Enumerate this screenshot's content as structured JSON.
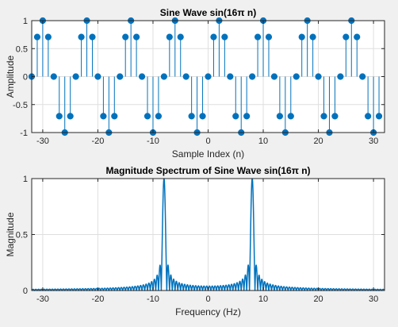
{
  "chart_data": [
    {
      "type": "stem",
      "title": "Sine Wave sin(16π n)",
      "xlabel": "Sample Index (n)",
      "ylabel": "Amplitude",
      "xlim": [
        -32,
        32
      ],
      "ylim": [
        -1,
        1
      ],
      "xticks": [
        -30,
        -20,
        -10,
        0,
        10,
        20,
        30
      ],
      "xtick_labels": [
        "-30",
        "-20",
        "-10",
        "0",
        "10",
        "20",
        "30"
      ],
      "yticks": [
        -1,
        -0.5,
        0,
        0.5,
        1
      ],
      "ytick_labels": [
        "-1",
        "-0.5",
        "0",
        "0.5",
        "1"
      ],
      "grid": true,
      "color": "#0072bd",
      "x": [
        -32,
        -31,
        -30,
        -29,
        -28,
        -27,
        -26,
        -25,
        -24,
        -23,
        -22,
        -21,
        -20,
        -19,
        -18,
        -17,
        -16,
        -15,
        -14,
        -13,
        -12,
        -11,
        -10,
        -9,
        -8,
        -7,
        -6,
        -5,
        -4,
        -3,
        -2,
        -1,
        0,
        1,
        2,
        3,
        4,
        5,
        6,
        7,
        8,
        9,
        10,
        11,
        12,
        13,
        14,
        15,
        16,
        17,
        18,
        19,
        20,
        21,
        22,
        23,
        24,
        25,
        26,
        27,
        28,
        29,
        30,
        31
      ],
      "y": [
        0,
        0.707,
        1,
        0.707,
        0,
        -0.707,
        -1,
        -0.707,
        0,
        0.707,
        1,
        0.707,
        0,
        -0.707,
        -1,
        -0.707,
        0,
        0.707,
        1,
        0.707,
        0,
        -0.707,
        -1,
        -0.707,
        0,
        0.707,
        1,
        0.707,
        0,
        -0.707,
        -1,
        -0.707,
        0,
        0.707,
        1,
        0.707,
        0,
        -0.707,
        -1,
        -0.707,
        0,
        0.707,
        1,
        0.707,
        0,
        -0.707,
        -1,
        -0.707,
        0,
        0.707,
        1,
        0.707,
        0,
        -0.707,
        -1,
        -0.707,
        0,
        0.707,
        1,
        0.707,
        0,
        -0.707,
        -1,
        -0.707
      ]
    },
    {
      "type": "line",
      "title": "Magnitude Spectrum of Sine Wave sin(16π n)",
      "xlabel": "Frequency (Hz)",
      "ylabel": "Magnitude",
      "xlim": [
        -32,
        32
      ],
      "ylim": [
        0,
        1
      ],
      "xticks": [
        -30,
        -20,
        -10,
        0,
        10,
        20,
        30
      ],
      "xtick_labels": [
        "-30",
        "-20",
        "-10",
        "0",
        "10",
        "20",
        "30"
      ],
      "yticks": [
        0,
        0.5,
        1
      ],
      "ytick_labels": [
        "0",
        "0.5",
        "1"
      ],
      "grid": true,
      "color": "#0072bd",
      "peaks": [
        -8,
        8
      ],
      "peak_value": 1,
      "sidelobe_spacing": 0.5
    }
  ]
}
